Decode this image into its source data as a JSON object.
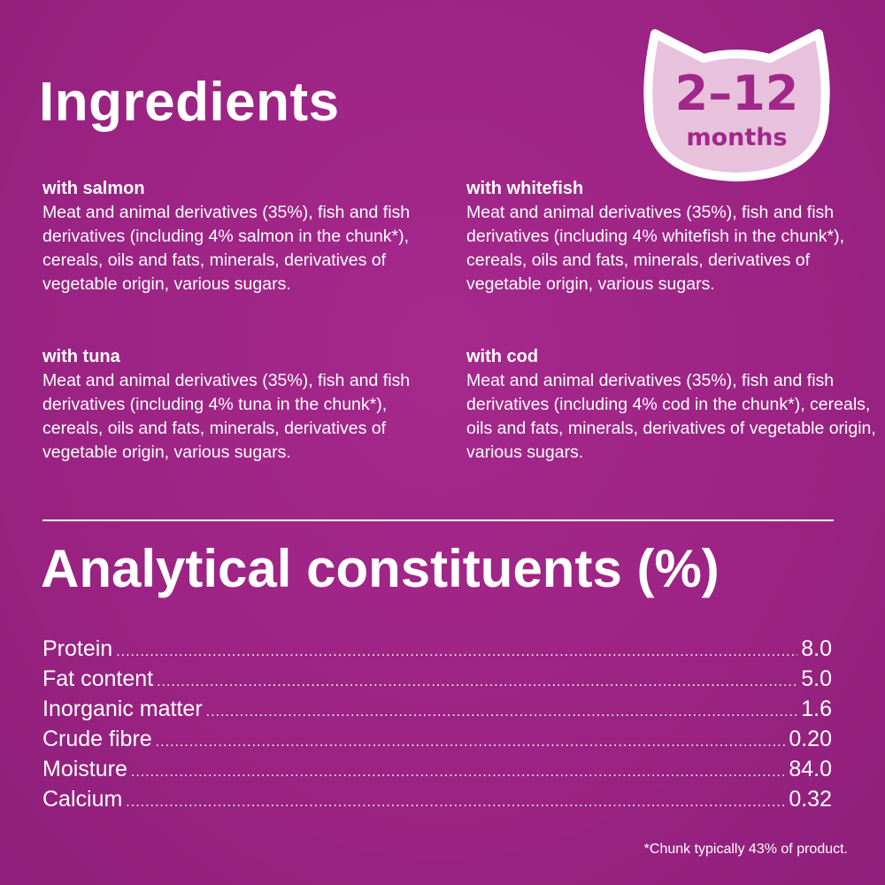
{
  "ingredients_title": "Ingredients",
  "badge": {
    "range": "2–12",
    "unit": "months",
    "fill": "#e8c1dc",
    "text_color": "#a1288a"
  },
  "ingredients": [
    {
      "title": "with salmon",
      "text": "Meat and animal derivatives (35%), fish and fish derivatives (including 4% salmon in the chunk*), cereals, oils and fats, minerals, derivatives of vegetable origin, various sugars."
    },
    {
      "title": "with whitefish",
      "text": "Meat and animal derivatives (35%), fish and fish derivatives (including 4% whitefish in the chunk*), cereals, oils and fats, minerals, derivatives of vegetable origin, various sugars."
    },
    {
      "title": "with tuna",
      "text": "Meat and animal derivatives (35%), fish and fish derivatives (including 4% tuna in the chunk*), cereals, oils and fats, minerals, derivatives of vegetable origin, various sugars."
    },
    {
      "title": "with cod",
      "text": "Meat and animal derivatives (35%), fish and fish derivatives (including 4% cod in the chunk*), cereals, oils and fats, minerals, derivatives of vegetable origin, various sugars."
    }
  ],
  "analytical_title": "Analytical constituents (%)",
  "constituents": [
    {
      "label": "Protein",
      "value": "8.0"
    },
    {
      "label": "Fat content",
      "value": "5.0"
    },
    {
      "label": "Inorganic matter",
      "value": "1.6"
    },
    {
      "label": "Crude fibre",
      "value": "0.20"
    },
    {
      "label": "Moisture",
      "value": "84.0"
    },
    {
      "label": "Calcium",
      "value": "0.32"
    }
  ],
  "footnote": "*Chunk typically 43% of product.",
  "background": "#9e2486"
}
